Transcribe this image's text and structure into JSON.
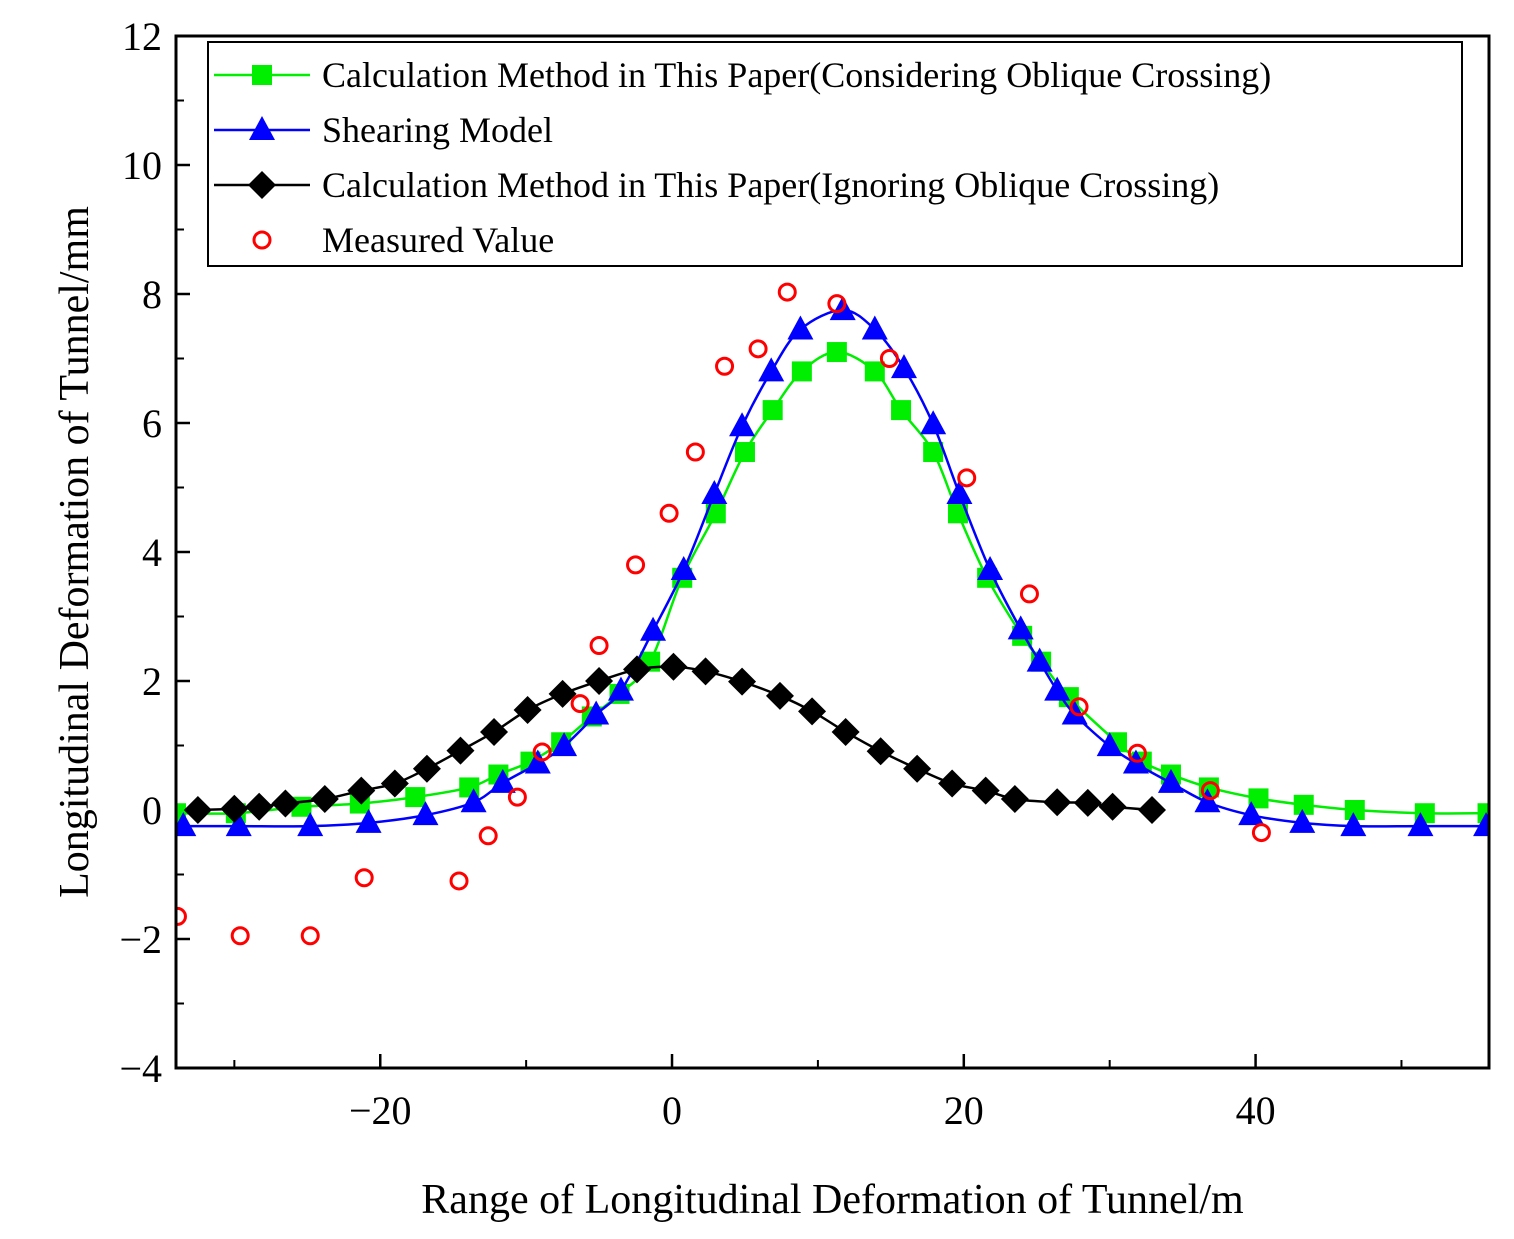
{
  "chart_data": {
    "type": "line",
    "title": "",
    "xlabel": "Range of Longitudinal Deformation of Tunnel/m",
    "ylabel": "Longitudinal Deformation of Tunnel/mm",
    "xlim": [
      -34,
      56
    ],
    "ylim": [
      -4,
      12
    ],
    "xticks": [
      -20,
      0,
      20,
      40
    ],
    "xtick_labels": [
      "−20",
      "0",
      "20",
      "40"
    ],
    "yticks": [
      -4,
      -2,
      0,
      2,
      4,
      6,
      8,
      10,
      12
    ],
    "ytick_labels": [
      "−4",
      "−2",
      "0",
      "2",
      "4",
      "6",
      "8",
      "10",
      "12"
    ],
    "legend_position": "top",
    "series": [
      {
        "name": "Calculation Method in This Paper(Considering Oblique Crossing)",
        "color": "#00ee00",
        "marker": "square",
        "line": true,
        "x": [
          -34,
          -29.9,
          -25.4,
          -21.4,
          -17.6,
          -13.9,
          -11.9,
          -9.7,
          -7.6,
          -5.5,
          -3.6,
          -1.5,
          0.7,
          3.0,
          5.0,
          6.9,
          8.9,
          11.3,
          13.9,
          15.7,
          17.9,
          19.6,
          21.6,
          24,
          25.3,
          27.2,
          30.5,
          32.2,
          34.2,
          36.8,
          40.2,
          43.3,
          46.8,
          51.6,
          55.9
        ],
        "y": [
          -0.05,
          -0.05,
          0.05,
          0.1,
          0.2,
          0.35,
          0.55,
          0.75,
          1.05,
          1.45,
          1.8,
          2.3,
          3.6,
          4.6,
          5.55,
          6.2,
          6.8,
          7.1,
          6.8,
          6.2,
          5.55,
          4.6,
          3.6,
          2.7,
          2.3,
          1.75,
          1.05,
          0.75,
          0.55,
          0.35,
          0.18,
          0.08,
          0.0,
          -0.05,
          -0.05
        ]
      },
      {
        "name": "Shearing Model",
        "color": "#0000ff",
        "marker": "triangle",
        "line": true,
        "x": [
          -33.5,
          -29.7,
          -24.8,
          -20.8,
          -16.9,
          -13.6,
          -11.6,
          -9.2,
          -7.4,
          -5.2,
          -3.5,
          -1.3,
          0.8,
          2.9,
          4.8,
          6.8,
          8.8,
          11.7,
          13.9,
          15.9,
          17.9,
          19.7,
          21.8,
          23.9,
          25.2,
          26.4,
          27.6,
          30.0,
          31.8,
          34.2,
          36.7,
          39.7,
          43.2,
          46.7,
          51.3,
          55.8
        ],
        "y": [
          -0.25,
          -0.25,
          -0.25,
          -0.2,
          -0.08,
          0.12,
          0.42,
          0.72,
          0.99,
          1.48,
          1.85,
          2.78,
          3.72,
          4.9,
          5.95,
          6.8,
          7.45,
          7.75,
          7.45,
          6.85,
          5.98,
          4.9,
          3.72,
          2.8,
          2.3,
          1.85,
          1.48,
          0.99,
          0.72,
          0.42,
          0.12,
          -0.08,
          -0.2,
          -0.25,
          -0.25,
          -0.25
        ]
      },
      {
        "name": "Calculation Method in This Paper(Ignoring Oblique Crossing)",
        "color": "#000000",
        "marker": "diamond",
        "line": true,
        "x": [
          -32.5,
          -30,
          -28.3,
          -26.5,
          -23.8,
          -21.3,
          -19,
          -16.8,
          -14.5,
          -12.2,
          -9.9,
          -7.5,
          -5,
          -2.4,
          0.1,
          2.3,
          4.8,
          7.4,
          9.6,
          11.9,
          14.3,
          16.8,
          19.2,
          21.5,
          23.5,
          26.4,
          28.5,
          30.2,
          32.9
        ],
        "y": [
          0.0,
          0.02,
          0.05,
          0.1,
          0.17,
          0.3,
          0.41,
          0.64,
          0.92,
          1.21,
          1.55,
          1.8,
          2.0,
          2.18,
          2.22,
          2.15,
          1.99,
          1.77,
          1.53,
          1.21,
          0.91,
          0.64,
          0.41,
          0.3,
          0.17,
          0.12,
          0.11,
          0.05,
          0.0
        ]
      },
      {
        "name": "Measured Value",
        "color": "#ff0000",
        "marker": "circle-open",
        "line": false,
        "x": [
          -33.9,
          -29.6,
          -24.8,
          -21.1,
          -14.6,
          -12.6,
          -10.6,
          -8.9,
          -6.3,
          -5.0,
          -2.5,
          -0.2,
          1.6,
          3.6,
          5.9,
          7.9,
          11.3,
          14.9,
          20.2,
          24.5,
          27.9,
          31.9,
          36.9,
          40.4
        ],
        "y": [
          -1.65,
          -1.95,
          -1.95,
          -1.05,
          -1.1,
          -0.4,
          0.2,
          0.9,
          1.65,
          2.55,
          3.8,
          4.6,
          5.55,
          6.88,
          7.15,
          8.03,
          7.85,
          7.0,
          5.15,
          3.35,
          1.6,
          0.88,
          0.3,
          -0.35
        ]
      }
    ]
  }
}
